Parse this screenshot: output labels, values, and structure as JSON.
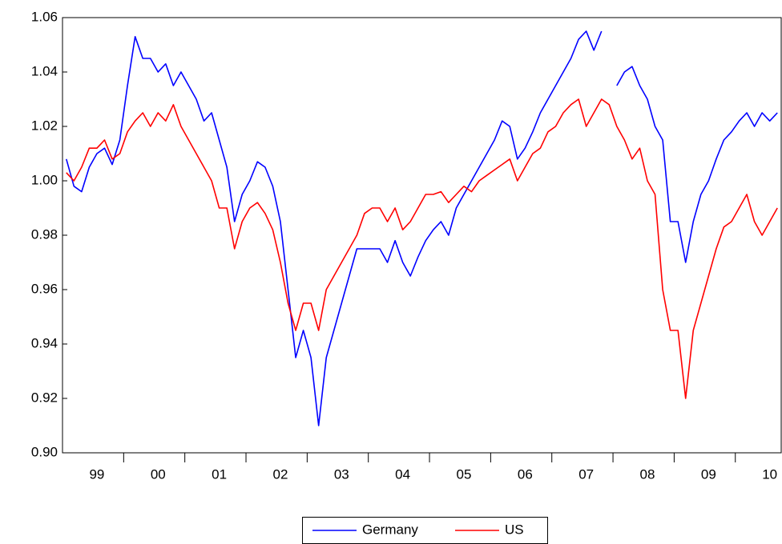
{
  "chart_data": {
    "type": "line",
    "categories": [
      null,
      null,
      null,
      null,
      "99",
      null,
      null,
      null,
      null,
      null,
      null,
      null,
      "00",
      null,
      null,
      null,
      null,
      null,
      null,
      null,
      "01",
      null,
      null,
      null,
      null,
      null,
      null,
      null,
      "02",
      null,
      null,
      null,
      null,
      null,
      null,
      null,
      "03",
      null,
      null,
      null,
      null,
      null,
      null,
      null,
      "04",
      null,
      null,
      null,
      null,
      null,
      null,
      null,
      "05",
      null,
      null,
      null,
      null,
      null,
      null,
      null,
      "06",
      null,
      null,
      null,
      null,
      null,
      null,
      null,
      "07",
      null,
      null,
      null,
      null,
      null,
      null,
      null,
      "08",
      null,
      null,
      null,
      null,
      null,
      null,
      null,
      "09",
      null,
      null,
      null,
      null,
      null,
      null,
      null,
      "10",
      null
    ],
    "series": [
      {
        "name": "Germany",
        "color": "#0000ff",
        "values": [
          1.008,
          0.998,
          0.996,
          1.005,
          1.01,
          1.012,
          1.006,
          1.015,
          1.035,
          1.053,
          1.045,
          1.045,
          1.04,
          1.043,
          1.035,
          1.04,
          1.035,
          1.03,
          1.022,
          1.025,
          1.015,
          1.005,
          0.985,
          0.995,
          1.0,
          1.007,
          1.005,
          0.998,
          0.985,
          0.96,
          0.935,
          0.945,
          0.935,
          0.91,
          0.935,
          0.945,
          0.955,
          0.965,
          0.975,
          0.975,
          0.975,
          0.975,
          0.97,
          0.978,
          0.97,
          0.965,
          0.972,
          0.978,
          0.982,
          0.985,
          0.98,
          0.99,
          0.995,
          1.0,
          1.005,
          1.01,
          1.015,
          1.022,
          1.02,
          1.008,
          1.012,
          1.018,
          1.025,
          1.03,
          1.035,
          1.04,
          1.045,
          1.052,
          1.055,
          1.048,
          1.055,
          null,
          1.035,
          1.04,
          1.042,
          1.035,
          1.03,
          1.02,
          1.015,
          0.985,
          0.985,
          0.97,
          0.985,
          0.995,
          1.0,
          1.008,
          1.015,
          1.018,
          1.022,
          1.025,
          1.02,
          1.025,
          1.022,
          1.025
        ]
      },
      {
        "name": "US",
        "color": "#ff0000",
        "values": [
          1.003,
          1.0,
          1.005,
          1.012,
          1.012,
          1.015,
          1.008,
          1.01,
          1.018,
          1.022,
          1.025,
          1.02,
          1.025,
          1.022,
          1.028,
          1.02,
          1.015,
          1.01,
          1.005,
          1.0,
          0.99,
          0.99,
          0.975,
          0.985,
          0.99,
          0.992,
          0.988,
          0.982,
          0.97,
          0.955,
          0.945,
          0.955,
          0.955,
          0.945,
          0.96,
          0.965,
          0.97,
          0.975,
          0.98,
          0.988,
          0.99,
          0.99,
          0.985,
          0.99,
          0.982,
          0.985,
          0.99,
          0.995,
          0.995,
          0.996,
          0.992,
          0.995,
          0.998,
          0.996,
          1.0,
          1.002,
          1.004,
          1.006,
          1.008,
          1.0,
          1.005,
          1.01,
          1.012,
          1.018,
          1.02,
          1.025,
          1.028,
          1.03,
          1.02,
          1.025,
          1.03,
          1.028,
          1.02,
          1.015,
          1.008,
          1.012,
          1.0,
          0.995,
          0.96,
          0.945,
          0.945,
          0.92,
          0.945,
          0.955,
          0.965,
          0.975,
          0.983,
          0.985,
          0.99,
          0.995,
          0.985,
          0.98,
          0.985,
          0.99
        ]
      }
    ],
    "ylim": [
      0.9,
      1.06
    ],
    "yticks": [
      {
        "value": 0.9,
        "label": "0.90"
      },
      0.92,
      0.94,
      0.96,
      0.98,
      {
        "value": 1,
        "label": "1.00"
      },
      1.02,
      1.04,
      1.06
    ],
    "grid": false
  }
}
